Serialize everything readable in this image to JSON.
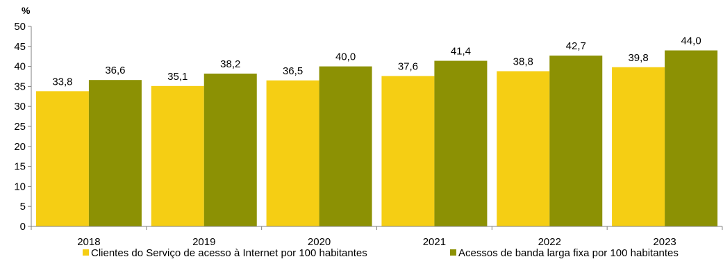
{
  "chart_data": {
    "type": "bar",
    "title": "",
    "xlabel": "",
    "ylabel": "%",
    "ylim": [
      0,
      50
    ],
    "yticks": [
      0,
      5,
      10,
      15,
      20,
      25,
      30,
      35,
      40,
      45,
      50
    ],
    "grid": false,
    "legend_position": "bottom",
    "categories": [
      "2018",
      "2019",
      "2020",
      "2021",
      "2022",
      "2023"
    ],
    "series": [
      {
        "name": "Clientes do Serviço de acesso à Internet por 100 habitantes",
        "color": "#F5CE14",
        "values": [
          33.8,
          35.1,
          36.5,
          37.6,
          38.8,
          39.8
        ],
        "labels": [
          "33,8",
          "35,1",
          "36,5",
          "37,6",
          "38,8",
          "39,8"
        ]
      },
      {
        "name": "Acessos de banda larga fixa por 100 habitantes",
        "color": "#8C9104",
        "values": [
          36.6,
          38.2,
          40.0,
          41.4,
          42.7,
          44.0
        ],
        "labels": [
          "36,6",
          "38,2",
          "40,0",
          "41,4",
          "42,7",
          "44,0"
        ]
      }
    ]
  }
}
